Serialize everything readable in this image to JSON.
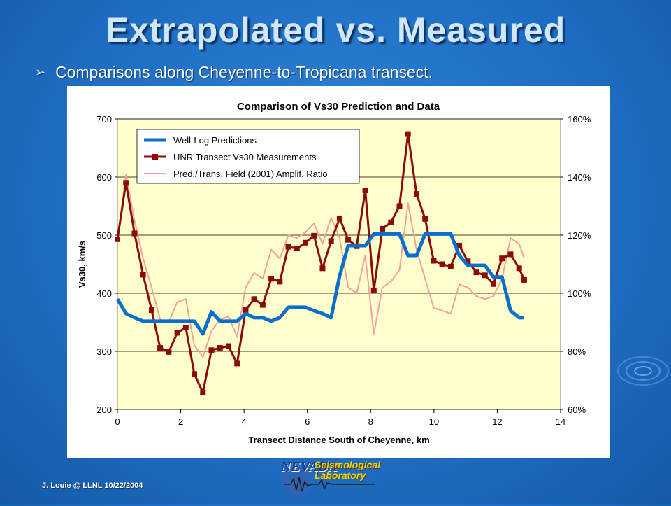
{
  "slide": {
    "title": "Extrapolated vs. Measured",
    "bullet": "Comparisons along Cheyenne-to-Tropicana transect.",
    "footer": "J. Louie @ LLNL   10/22/2004",
    "logo_word_1": "NEVADA",
    "logo_word_2": "Seismological",
    "logo_word_3": "Laboratory"
  },
  "chart_data": {
    "type": "line",
    "title": "Comparison of Vs30 Prediction and Data",
    "xlabel": "Transect Distance South of Cheyenne, km",
    "ylabel": "Vs30, km/s",
    "xlim": [
      0,
      14
    ],
    "ylim": [
      200,
      700
    ],
    "y2lim": [
      0.6,
      1.6
    ],
    "x_ticks": [
      "0",
      "2",
      "4",
      "6",
      "8",
      "10",
      "12",
      "14"
    ],
    "y_ticks": [
      "200",
      "300",
      "400",
      "500",
      "600",
      "700"
    ],
    "y2_ticks": [
      "60%",
      "80%",
      "100%",
      "120%",
      "140%",
      "160%"
    ],
    "grid": "horizontal",
    "legend_position": "top-left",
    "plot_background": "#ffffcc",
    "series": [
      {
        "name": "Well-Log Predictions",
        "axis": "left",
        "color": "#0a6fcc",
        "x": [
          0,
          0.27,
          0.54,
          0.81,
          1.08,
          1.35,
          1.62,
          1.89,
          2.16,
          2.43,
          2.7,
          2.97,
          3.24,
          3.51,
          3.78,
          4.05,
          4.32,
          4.59,
          4.86,
          5.13,
          5.4,
          5.67,
          5.94,
          6.21,
          6.48,
          6.75,
          7.02,
          7.29,
          7.56,
          7.83,
          8.1,
          8.37,
          8.64,
          8.91,
          9.18,
          9.45,
          9.72,
          9.99,
          10.26,
          10.53,
          10.8,
          11.07,
          11.34,
          11.61,
          11.88,
          12.15,
          12.42,
          12.69,
          12.85
        ],
        "values": [
          390,
          365,
          358,
          352,
          352,
          352,
          352,
          352,
          352,
          352,
          330,
          368,
          352,
          352,
          352,
          365,
          358,
          358,
          352,
          358,
          376,
          376,
          376,
          370,
          365,
          358,
          430,
          482,
          482,
          482,
          502,
          502,
          502,
          502,
          465,
          465,
          502,
          502,
          502,
          502,
          465,
          448,
          448,
          448,
          428,
          428,
          370,
          358,
          358
        ]
      },
      {
        "name": "UNR Transect Vs30 Measurements",
        "axis": "left",
        "color": "#8b0a0a",
        "marker": "square",
        "x": [
          0,
          0.27,
          0.54,
          0.81,
          1.08,
          1.35,
          1.62,
          1.89,
          2.16,
          2.43,
          2.7,
          2.97,
          3.24,
          3.51,
          3.78,
          4.05,
          4.32,
          4.59,
          4.86,
          5.13,
          5.4,
          5.67,
          5.94,
          6.21,
          6.48,
          6.75,
          7.02,
          7.29,
          7.56,
          7.83,
          8.1,
          8.37,
          8.64,
          8.91,
          9.18,
          9.45,
          9.72,
          9.99,
          10.26,
          10.53,
          10.8,
          11.07,
          11.34,
          11.61,
          11.88,
          12.15,
          12.42,
          12.69,
          12.85
        ],
        "values": [
          493,
          590,
          503,
          432,
          371,
          306,
          299,
          332,
          341,
          261,
          229,
          302,
          306,
          309,
          279,
          371,
          390,
          380,
          425,
          420,
          480,
          477,
          487,
          499,
          443,
          490,
          529,
          492,
          481,
          577,
          405,
          511,
          522,
          550,
          674,
          571,
          528,
          456,
          450,
          446,
          482,
          455,
          436,
          431,
          416,
          460,
          467,
          443,
          423
        ]
      },
      {
        "name": "Pred./Trans. Field (2001) Amplif. Ratio",
        "axis": "right",
        "color": "#f4a0a0",
        "x": [
          0,
          0.27,
          0.54,
          0.81,
          1.08,
          1.35,
          1.62,
          1.89,
          2.16,
          2.43,
          2.7,
          2.97,
          3.24,
          3.51,
          3.78,
          4.05,
          4.32,
          4.59,
          4.86,
          5.13,
          5.4,
          5.67,
          5.94,
          6.21,
          6.48,
          6.75,
          7.02,
          7.29,
          7.56,
          7.83,
          8.1,
          8.37,
          8.64,
          8.91,
          9.18,
          9.45,
          9.72,
          9.99,
          10.26,
          10.53,
          10.8,
          11.07,
          11.34,
          11.61,
          11.88,
          12.15,
          12.42,
          12.69,
          12.85
        ],
        "values": [
          1.18,
          1.41,
          1.25,
          1.12,
          1.02,
          0.91,
          0.9,
          0.97,
          0.98,
          0.82,
          0.78,
          0.87,
          0.91,
          0.92,
          0.85,
          1.02,
          1.07,
          1.05,
          1.15,
          1.12,
          1.2,
          1.19,
          1.21,
          1.24,
          1.17,
          1.26,
          1.19,
          1.02,
          1.0,
          1.13,
          0.86,
          1.02,
          1.04,
          1.08,
          1.31,
          1.15,
          1.05,
          0.95,
          0.94,
          0.93,
          1.03,
          1.02,
          0.99,
          0.98,
          0.99,
          1.05,
          1.19,
          1.17,
          1.12
        ]
      }
    ]
  }
}
